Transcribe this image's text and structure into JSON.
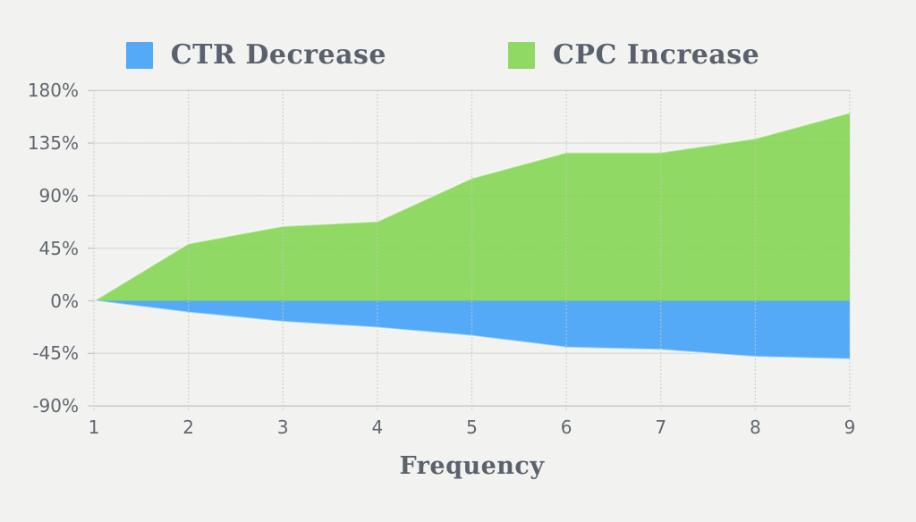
{
  "background_color": "#f2f2f1",
  "legend": {
    "items": [
      {
        "label": "CTR Decrease",
        "color": "#55aaf7"
      },
      {
        "label": "CPC Increase",
        "color": "#8fd964"
      }
    ]
  },
  "axes": {
    "x_title": "Frequency",
    "y_tick_labels": [
      "180%",
      "135%",
      "90%",
      "45%",
      "0%",
      "-45%",
      "-90%"
    ],
    "x_tick_labels": [
      "1",
      "2",
      "3",
      "4",
      "5",
      "6",
      "7",
      "8",
      "9"
    ]
  },
  "chart_data": {
    "type": "area",
    "x": [
      1,
      2,
      3,
      4,
      5,
      6,
      7,
      8,
      9
    ],
    "series": [
      {
        "name": "CPC Increase",
        "color": "#8fd964",
        "values": [
          0,
          49,
          64,
          68,
          105,
          127,
          127,
          139,
          161
        ]
      },
      {
        "name": "CTR Decrease",
        "color": "#55aaf7",
        "values": [
          0,
          -10,
          -18,
          -23,
          -30,
          -40,
          -42,
          -48,
          -50
        ]
      }
    ],
    "xlabel": "Frequency",
    "ylabel": "",
    "y_ticks": [
      180,
      135,
      90,
      45,
      0,
      -45,
      -90
    ],
    "y_tick_suffix": "%",
    "ylim": [
      -90,
      180
    ],
    "xlim": [
      1,
      9
    ],
    "grid": true,
    "legend_position": "top",
    "colors": {
      "gridline": "#dcdcdb",
      "gridline_top": "#c6cbd2",
      "axis_bottom": "#c4c6c8",
      "tick_mark": "#c2c4c6",
      "vertical_dotted": "#c7c7c6"
    }
  }
}
